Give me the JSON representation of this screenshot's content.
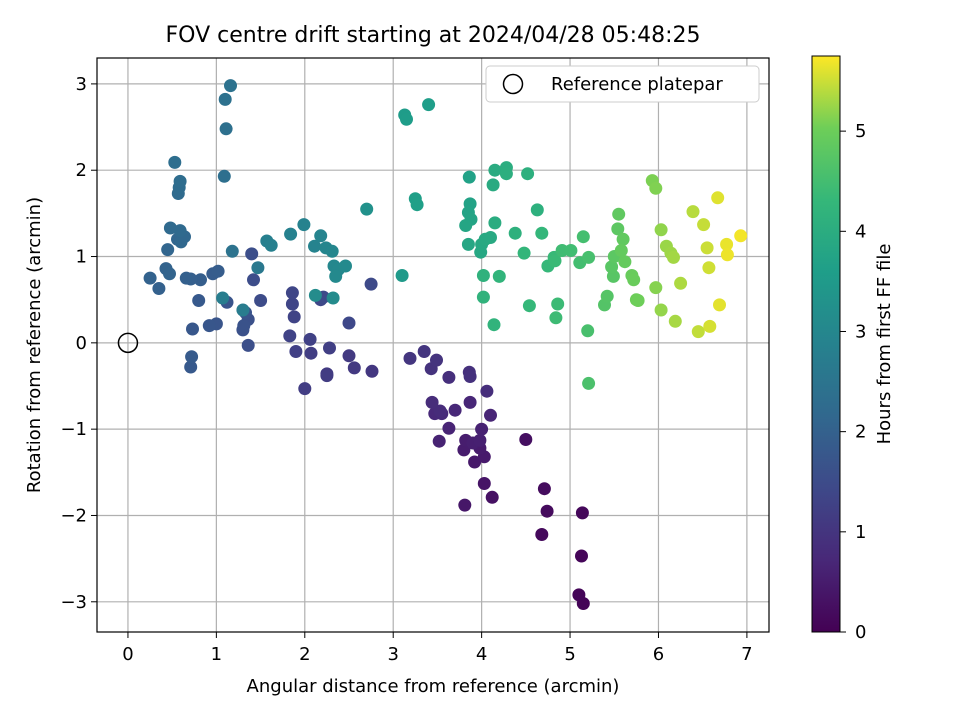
{
  "chart_data": {
    "type": "scatter",
    "title": "FOV centre drift starting at 2024/04/28 05:48:25",
    "xlabel": "Angular distance from reference (arcmin)",
    "ylabel": "Rotation from reference (arcmin)",
    "xlim": [
      -0.35,
      7.25
    ],
    "ylim": [
      -3.35,
      3.3
    ],
    "xticks": [
      0,
      1,
      2,
      3,
      4,
      5,
      6,
      7
    ],
    "yticks": [
      -3,
      -2,
      -1,
      0,
      1,
      2,
      3
    ],
    "grid": true,
    "legend": {
      "placement": "top-right",
      "entries": [
        "Reference platepar"
      ]
    },
    "reference_point": {
      "x": 0,
      "y": 0
    },
    "colorbar": {
      "label": "Hours from first FF file",
      "range": [
        0,
        5.75
      ],
      "ticks": [
        0,
        1,
        2,
        3,
        4,
        5
      ],
      "colormap": "viridis"
    },
    "points": [
      {
        "x": 5.15,
        "y": -3.02,
        "h": 0.05
      },
      {
        "x": 5.1,
        "y": -2.92,
        "h": 0.08
      },
      {
        "x": 5.13,
        "y": -2.47,
        "h": 0.1
      },
      {
        "x": 5.14,
        "y": -1.97,
        "h": 0.12
      },
      {
        "x": 4.68,
        "y": -2.22,
        "h": 0.15
      },
      {
        "x": 4.74,
        "y": -1.95,
        "h": 0.18
      },
      {
        "x": 4.71,
        "y": -1.69,
        "h": 0.2
      },
      {
        "x": 4.5,
        "y": -1.12,
        "h": 0.25
      },
      {
        "x": 4.12,
        "y": -1.79,
        "h": 0.3
      },
      {
        "x": 4.03,
        "y": -1.63,
        "h": 0.35
      },
      {
        "x": 3.81,
        "y": -1.88,
        "h": 0.4
      },
      {
        "x": 3.92,
        "y": -1.38,
        "h": 0.42
      },
      {
        "x": 4.03,
        "y": -1.32,
        "h": 0.45
      },
      {
        "x": 3.98,
        "y": -1.22,
        "h": 0.48
      },
      {
        "x": 3.8,
        "y": -1.24,
        "h": 0.5
      },
      {
        "x": 3.82,
        "y": -1.13,
        "h": 0.52
      },
      {
        "x": 3.9,
        "y": -1.16,
        "h": 0.55
      },
      {
        "x": 3.98,
        "y": -1.13,
        "h": 0.57
      },
      {
        "x": 4.0,
        "y": -1.0,
        "h": 0.6
      },
      {
        "x": 3.52,
        "y": -1.14,
        "h": 0.62
      },
      {
        "x": 3.63,
        "y": -0.99,
        "h": 0.65
      },
      {
        "x": 4.1,
        "y": -0.84,
        "h": 0.68
      },
      {
        "x": 3.87,
        "y": -0.69,
        "h": 0.7
      },
      {
        "x": 3.7,
        "y": -0.78,
        "h": 0.72
      },
      {
        "x": 3.47,
        "y": -0.82,
        "h": 0.75
      },
      {
        "x": 3.55,
        "y": -0.82,
        "h": 0.77
      },
      {
        "x": 3.53,
        "y": -0.79,
        "h": 0.8
      },
      {
        "x": 3.44,
        "y": -0.69,
        "h": 0.82
      },
      {
        "x": 4.06,
        "y": -0.56,
        "h": 0.85
      },
      {
        "x": 3.63,
        "y": -0.4,
        "h": 0.87
      },
      {
        "x": 3.86,
        "y": -0.34,
        "h": 0.9
      },
      {
        "x": 3.87,
        "y": -0.39,
        "h": 0.92
      },
      {
        "x": 3.43,
        "y": -0.3,
        "h": 0.95
      },
      {
        "x": 3.49,
        "y": -0.2,
        "h": 0.97
      },
      {
        "x": 3.35,
        "y": -0.1,
        "h": 1.0
      },
      {
        "x": 3.19,
        "y": -0.18,
        "h": 1.02
      },
      {
        "x": 2.76,
        "y": -0.33,
        "h": 1.05
      },
      {
        "x": 2.56,
        "y": -0.29,
        "h": 1.08
      },
      {
        "x": 2.5,
        "y": -0.15,
        "h": 1.1
      },
      {
        "x": 2.25,
        "y": -0.36,
        "h": 1.12
      },
      {
        "x": 2.25,
        "y": -0.38,
        "h": 1.15
      },
      {
        "x": 2.0,
        "y": -0.53,
        "h": 1.17
      },
      {
        "x": 2.07,
        "y": -0.12,
        "h": 1.2
      },
      {
        "x": 2.28,
        "y": -0.06,
        "h": 1.22
      },
      {
        "x": 1.9,
        "y": -0.1,
        "h": 1.25
      },
      {
        "x": 2.06,
        "y": 0.04,
        "h": 1.27
      },
      {
        "x": 1.83,
        "y": 0.08,
        "h": 1.3
      },
      {
        "x": 1.88,
        "y": 0.3,
        "h": 1.32
      },
      {
        "x": 1.86,
        "y": 0.45,
        "h": 1.35
      },
      {
        "x": 1.86,
        "y": 0.58,
        "h": 1.37
      },
      {
        "x": 2.18,
        "y": 0.5,
        "h": 1.4
      },
      {
        "x": 2.5,
        "y": 0.23,
        "h": 1.42
      },
      {
        "x": 2.75,
        "y": 0.68,
        "h": 1.45
      },
      {
        "x": 2.21,
        "y": 0.53,
        "h": 1.47
      },
      {
        "x": 1.5,
        "y": 0.49,
        "h": 1.5
      },
      {
        "x": 1.42,
        "y": 0.73,
        "h": 1.52
      },
      {
        "x": 1.4,
        "y": 1.03,
        "h": 1.55
      },
      {
        "x": 1.36,
        "y": -0.03,
        "h": 1.57
      },
      {
        "x": 1.36,
        "y": 0.27,
        "h": 1.6
      },
      {
        "x": 1.3,
        "y": 0.15,
        "h": 1.62
      },
      {
        "x": 1.31,
        "y": 0.2,
        "h": 1.65
      },
      {
        "x": 1.33,
        "y": 0.35,
        "h": 1.67
      },
      {
        "x": 1.12,
        "y": 0.47,
        "h": 1.7
      },
      {
        "x": 1.0,
        "y": 0.22,
        "h": 1.72
      },
      {
        "x": 0.92,
        "y": 0.2,
        "h": 1.75
      },
      {
        "x": 0.73,
        "y": 0.16,
        "h": 1.77
      },
      {
        "x": 0.8,
        "y": 0.49,
        "h": 1.8
      },
      {
        "x": 0.71,
        "y": -0.28,
        "h": 1.82
      },
      {
        "x": 0.72,
        "y": -0.16,
        "h": 1.85
      },
      {
        "x": 0.96,
        "y": 0.8,
        "h": 1.87
      },
      {
        "x": 1.02,
        "y": 0.83,
        "h": 1.9
      },
      {
        "x": 0.82,
        "y": 0.73,
        "h": 1.92
      },
      {
        "x": 0.71,
        "y": 0.74,
        "h": 1.95
      },
      {
        "x": 0.66,
        "y": 0.75,
        "h": 1.97
      },
      {
        "x": 0.35,
        "y": 0.63,
        "h": 2.0
      },
      {
        "x": 0.25,
        "y": 0.75,
        "h": 2.02
      },
      {
        "x": 0.43,
        "y": 0.86,
        "h": 2.05
      },
      {
        "x": 0.47,
        "y": 0.8,
        "h": 2.07
      },
      {
        "x": 0.45,
        "y": 1.08,
        "h": 2.1
      },
      {
        "x": 0.56,
        "y": 1.2,
        "h": 2.12
      },
      {
        "x": 0.6,
        "y": 1.17,
        "h": 2.15
      },
      {
        "x": 0.64,
        "y": 1.23,
        "h": 2.17
      },
      {
        "x": 0.59,
        "y": 1.3,
        "h": 2.2
      },
      {
        "x": 0.48,
        "y": 1.33,
        "h": 2.22
      },
      {
        "x": 0.57,
        "y": 1.73,
        "h": 2.25
      },
      {
        "x": 0.58,
        "y": 1.8,
        "h": 2.27
      },
      {
        "x": 0.59,
        "y": 1.87,
        "h": 2.3
      },
      {
        "x": 0.53,
        "y": 2.09,
        "h": 2.32
      },
      {
        "x": 1.09,
        "y": 1.93,
        "h": 2.35
      },
      {
        "x": 1.11,
        "y": 2.48,
        "h": 2.37
      },
      {
        "x": 1.1,
        "y": 2.82,
        "h": 2.4
      },
      {
        "x": 1.16,
        "y": 2.98,
        "h": 2.42
      },
      {
        "x": 1.18,
        "y": 1.06,
        "h": 2.45
      },
      {
        "x": 1.47,
        "y": 0.87,
        "h": 2.6
      },
      {
        "x": 1.3,
        "y": 0.38,
        "h": 2.7
      },
      {
        "x": 1.07,
        "y": 0.52,
        "h": 2.75
      },
      {
        "x": 1.57,
        "y": 1.18,
        "h": 2.8
      },
      {
        "x": 1.62,
        "y": 1.13,
        "h": 2.82
      },
      {
        "x": 1.84,
        "y": 1.26,
        "h": 2.85
      },
      {
        "x": 1.99,
        "y": 1.37,
        "h": 2.87
      },
      {
        "x": 2.11,
        "y": 1.12,
        "h": 2.9
      },
      {
        "x": 2.18,
        "y": 1.24,
        "h": 2.92
      },
      {
        "x": 2.24,
        "y": 1.1,
        "h": 2.95
      },
      {
        "x": 2.31,
        "y": 1.06,
        "h": 2.97
      },
      {
        "x": 2.33,
        "y": 0.89,
        "h": 3.0
      },
      {
        "x": 2.38,
        "y": 0.85,
        "h": 3.02
      },
      {
        "x": 2.35,
        "y": 0.77,
        "h": 3.05
      },
      {
        "x": 2.46,
        "y": 0.89,
        "h": 3.07
      },
      {
        "x": 2.32,
        "y": 0.52,
        "h": 3.1
      },
      {
        "x": 2.12,
        "y": 0.55,
        "h": 3.12
      },
      {
        "x": 2.7,
        "y": 1.55,
        "h": 3.25
      },
      {
        "x": 3.1,
        "y": 0.78,
        "h": 3.5
      },
      {
        "x": 3.13,
        "y": 2.64,
        "h": 3.55
      },
      {
        "x": 3.15,
        "y": 2.59,
        "h": 3.57
      },
      {
        "x": 3.4,
        "y": 2.76,
        "h": 3.6
      },
      {
        "x": 3.25,
        "y": 1.67,
        "h": 3.62
      },
      {
        "x": 3.27,
        "y": 1.6,
        "h": 3.65
      },
      {
        "x": 3.86,
        "y": 1.92,
        "h": 3.7
      },
      {
        "x": 3.87,
        "y": 1.61,
        "h": 3.72
      },
      {
        "x": 3.85,
        "y": 1.51,
        "h": 3.75
      },
      {
        "x": 3.88,
        "y": 1.43,
        "h": 3.77
      },
      {
        "x": 3.82,
        "y": 1.36,
        "h": 3.8
      },
      {
        "x": 3.85,
        "y": 1.14,
        "h": 3.82
      },
      {
        "x": 3.99,
        "y": 1.05,
        "h": 3.85
      },
      {
        "x": 4.0,
        "y": 1.14,
        "h": 3.87
      },
      {
        "x": 4.04,
        "y": 1.2,
        "h": 3.9
      },
      {
        "x": 4.1,
        "y": 1.22,
        "h": 3.92
      },
      {
        "x": 4.13,
        "y": 1.83,
        "h": 3.95
      },
      {
        "x": 4.15,
        "y": 2.0,
        "h": 3.97
      },
      {
        "x": 4.15,
        "y": 1.39,
        "h": 4.0
      },
      {
        "x": 4.28,
        "y": 2.03,
        "h": 4.02
      },
      {
        "x": 4.28,
        "y": 1.96,
        "h": 4.05
      },
      {
        "x": 4.52,
        "y": 1.96,
        "h": 4.07
      },
      {
        "x": 4.63,
        "y": 1.54,
        "h": 4.1
      },
      {
        "x": 4.38,
        "y": 1.27,
        "h": 4.12
      },
      {
        "x": 4.02,
        "y": 0.78,
        "h": 4.15
      },
      {
        "x": 4.02,
        "y": 0.53,
        "h": 4.17
      },
      {
        "x": 4.14,
        "y": 0.21,
        "h": 4.2
      },
      {
        "x": 4.2,
        "y": 0.77,
        "h": 4.22
      },
      {
        "x": 4.48,
        "y": 1.04,
        "h": 4.25
      },
      {
        "x": 4.68,
        "y": 1.27,
        "h": 4.27
      },
      {
        "x": 4.54,
        "y": 0.43,
        "h": 4.3
      },
      {
        "x": 4.75,
        "y": 0.89,
        "h": 4.32
      },
      {
        "x": 4.82,
        "y": 0.99,
        "h": 4.35
      },
      {
        "x": 4.83,
        "y": 0.95,
        "h": 4.37
      },
      {
        "x": 4.86,
        "y": 0.45,
        "h": 4.4
      },
      {
        "x": 4.84,
        "y": 0.29,
        "h": 4.42
      },
      {
        "x": 4.91,
        "y": 1.07,
        "h": 4.45
      },
      {
        "x": 5.01,
        "y": 1.07,
        "h": 4.47
      },
      {
        "x": 5.11,
        "y": 0.93,
        "h": 4.5
      },
      {
        "x": 5.15,
        "y": 1.23,
        "h": 4.52
      },
      {
        "x": 5.21,
        "y": 0.99,
        "h": 4.55
      },
      {
        "x": 5.2,
        "y": 0.14,
        "h": 4.57
      },
      {
        "x": 5.21,
        "y": -0.47,
        "h": 4.6
      },
      {
        "x": 5.39,
        "y": 0.44,
        "h": 4.7
      },
      {
        "x": 5.42,
        "y": 0.54,
        "h": 4.72
      },
      {
        "x": 5.49,
        "y": 0.77,
        "h": 4.75
      },
      {
        "x": 5.47,
        "y": 0.88,
        "h": 4.77
      },
      {
        "x": 5.5,
        "y": 1.0,
        "h": 4.8
      },
      {
        "x": 5.54,
        "y": 1.32,
        "h": 4.82
      },
      {
        "x": 5.55,
        "y": 1.49,
        "h": 4.85
      },
      {
        "x": 5.6,
        "y": 1.2,
        "h": 4.87
      },
      {
        "x": 5.58,
        "y": 1.07,
        "h": 4.9
      },
      {
        "x": 5.62,
        "y": 0.94,
        "h": 4.92
      },
      {
        "x": 5.7,
        "y": 0.78,
        "h": 4.95
      },
      {
        "x": 5.72,
        "y": 0.73,
        "h": 4.97
      },
      {
        "x": 5.75,
        "y": 0.5,
        "h": 5.0
      },
      {
        "x": 5.77,
        "y": 0.49,
        "h": 5.02
      },
      {
        "x": 5.93,
        "y": 1.88,
        "h": 5.1
      },
      {
        "x": 5.97,
        "y": 1.79,
        "h": 5.12
      },
      {
        "x": 5.97,
        "y": 0.64,
        "h": 5.15
      },
      {
        "x": 6.03,
        "y": 1.31,
        "h": 5.2
      },
      {
        "x": 6.03,
        "y": 0.38,
        "h": 5.22
      },
      {
        "x": 6.09,
        "y": 1.12,
        "h": 5.25
      },
      {
        "x": 6.14,
        "y": 1.04,
        "h": 5.27
      },
      {
        "x": 6.17,
        "y": 0.99,
        "h": 5.3
      },
      {
        "x": 6.19,
        "y": 0.25,
        "h": 5.32
      },
      {
        "x": 6.25,
        "y": 0.69,
        "h": 5.35
      },
      {
        "x": 6.39,
        "y": 1.52,
        "h": 5.4
      },
      {
        "x": 6.45,
        "y": 0.13,
        "h": 5.45
      },
      {
        "x": 6.51,
        "y": 1.37,
        "h": 5.47
      },
      {
        "x": 6.55,
        "y": 1.1,
        "h": 5.5
      },
      {
        "x": 6.57,
        "y": 0.87,
        "h": 5.52
      },
      {
        "x": 6.58,
        "y": 0.19,
        "h": 5.55
      },
      {
        "x": 6.67,
        "y": 1.68,
        "h": 5.6
      },
      {
        "x": 6.69,
        "y": 0.44,
        "h": 5.62
      },
      {
        "x": 6.77,
        "y": 1.14,
        "h": 5.65
      },
      {
        "x": 6.78,
        "y": 1.02,
        "h": 5.67
      },
      {
        "x": 6.93,
        "y": 1.24,
        "h": 5.7
      }
    ]
  }
}
